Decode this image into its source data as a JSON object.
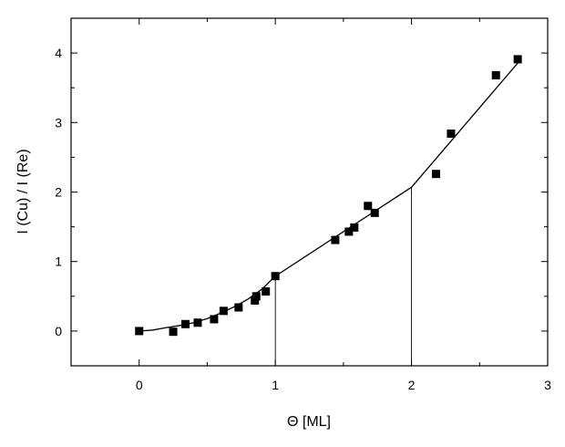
{
  "chart_data": {
    "type": "scatter",
    "xlabel": "Θ [ML]",
    "ylabel": "I (Cu) / I (Re)",
    "xlim": [
      -0.5,
      3.0
    ],
    "ylim": [
      -0.5,
      4.5
    ],
    "x_ticks": [
      "0",
      "1",
      "2",
      "3"
    ],
    "y_ticks": [
      "0",
      "1",
      "2",
      "3",
      "4"
    ],
    "grid": false,
    "legend": "none",
    "series": [
      {
        "marker": "square",
        "points": [
          {
            "x": 0.0,
            "y": 0.0
          },
          {
            "x": 0.25,
            "y": -0.01
          },
          {
            "x": 0.34,
            "y": 0.1
          },
          {
            "x": 0.43,
            "y": 0.12
          },
          {
            "x": 0.55,
            "y": 0.17
          },
          {
            "x": 0.62,
            "y": 0.29
          },
          {
            "x": 0.73,
            "y": 0.34
          },
          {
            "x": 0.85,
            "y": 0.44
          },
          {
            "x": 0.86,
            "y": 0.5
          },
          {
            "x": 0.93,
            "y": 0.57
          },
          {
            "x": 1.0,
            "y": 0.79
          },
          {
            "x": 1.44,
            "y": 1.31
          },
          {
            "x": 1.54,
            "y": 1.43
          },
          {
            "x": 1.58,
            "y": 1.49
          },
          {
            "x": 1.68,
            "y": 1.8
          },
          {
            "x": 1.73,
            "y": 1.7
          },
          {
            "x": 2.18,
            "y": 2.26
          },
          {
            "x": 2.29,
            "y": 2.84
          },
          {
            "x": 2.62,
            "y": 3.68
          },
          {
            "x": 2.78,
            "y": 3.91
          }
        ]
      },
      {
        "style": "line",
        "points": [
          {
            "x": 0.0,
            "y": 0.0
          },
          {
            "x": 0.1,
            "y": 0.015
          },
          {
            "x": 0.2,
            "y": 0.05
          },
          {
            "x": 0.3,
            "y": 0.08
          },
          {
            "x": 0.4,
            "y": 0.12
          },
          {
            "x": 0.5,
            "y": 0.18
          },
          {
            "x": 0.6,
            "y": 0.26
          },
          {
            "x": 0.7,
            "y": 0.35
          },
          {
            "x": 0.8,
            "y": 0.46
          },
          {
            "x": 0.9,
            "y": 0.6
          },
          {
            "x": 1.0,
            "y": 0.79
          },
          {
            "x": 2.0,
            "y": 2.07
          },
          {
            "x": 2.8,
            "y": 3.9
          }
        ]
      }
    ],
    "reference_lines": [
      {
        "x": 1.0,
        "y_from": -0.5,
        "y_to": 0.79
      },
      {
        "x": 2.0,
        "y_from": -0.5,
        "y_to": 2.07
      }
    ]
  }
}
